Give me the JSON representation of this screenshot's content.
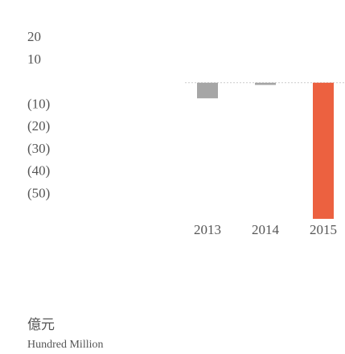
{
  "chart_data": {
    "type": "bar",
    "categories": [
      "2013",
      "2014",
      "2015"
    ],
    "values": [
      -7,
      -1,
      -61
    ],
    "colors": [
      "#a6a6a6",
      "#a6a6a6",
      "#ec6140"
    ],
    "ylim": [
      -61,
      23
    ],
    "yticks": [
      20,
      10,
      {
        "value": -10,
        "label": "(10)"
      },
      {
        "value": -20,
        "label": "(20)"
      },
      {
        "value": -30,
        "label": "(30)"
      },
      {
        "value": -40,
        "label": "(40)"
      },
      {
        "value": -50,
        "label": "(50)"
      }
    ],
    "unit_label": "億元",
    "unit_label_en": "Hundred Million"
  }
}
